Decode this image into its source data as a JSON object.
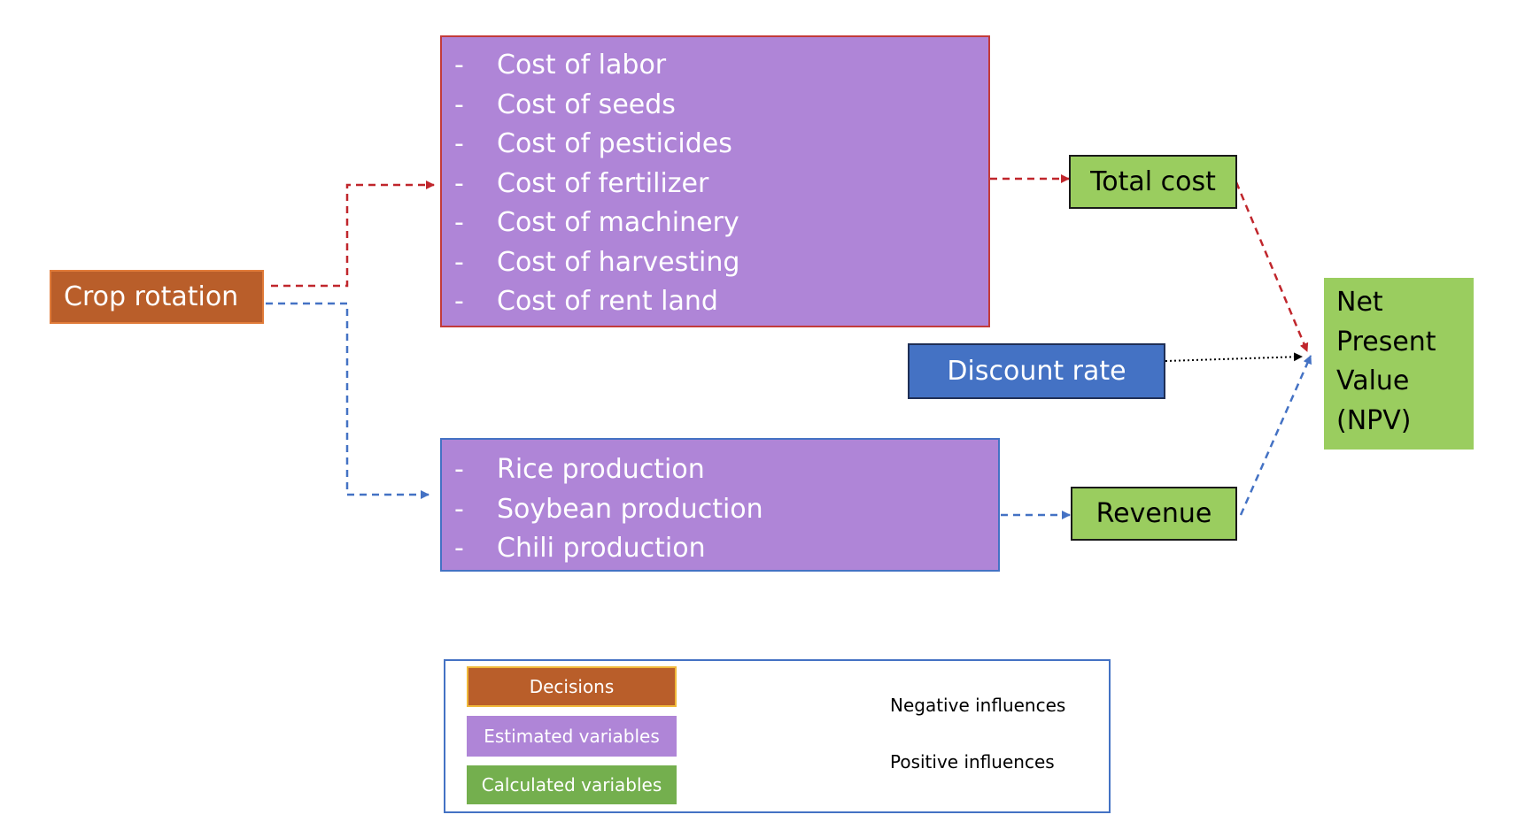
{
  "nodes": {
    "crop_rotation": "Crop rotation",
    "costs": [
      "Cost of labor",
      "Cost of seeds",
      "Cost of pesticides",
      "Cost of fertilizer",
      "Cost of machinery",
      "Cost of harvesting",
      "Cost of rent land"
    ],
    "productions": [
      "Rice production",
      "Soybean production",
      "Chili production"
    ],
    "bullet": "-",
    "total_cost": "Total cost",
    "revenue": "Revenue",
    "discount_rate": "Discount rate",
    "npv_lines": [
      "Net",
      "Present",
      "Value",
      "(NPV)"
    ]
  },
  "legend": {
    "decisions": "Decisions",
    "estimated": "Estimated variables",
    "calculated": "Calculated variables",
    "negative": "Negative influences",
    "positive": "Positive influences"
  },
  "colors": {
    "decision": "#B95E2A",
    "estimated": "#AF85D7",
    "calculated": "#9ACD5F",
    "discount": "#4472C4",
    "negative": "#C0262C",
    "positive": "#4472C4",
    "neutral": "#000000"
  }
}
